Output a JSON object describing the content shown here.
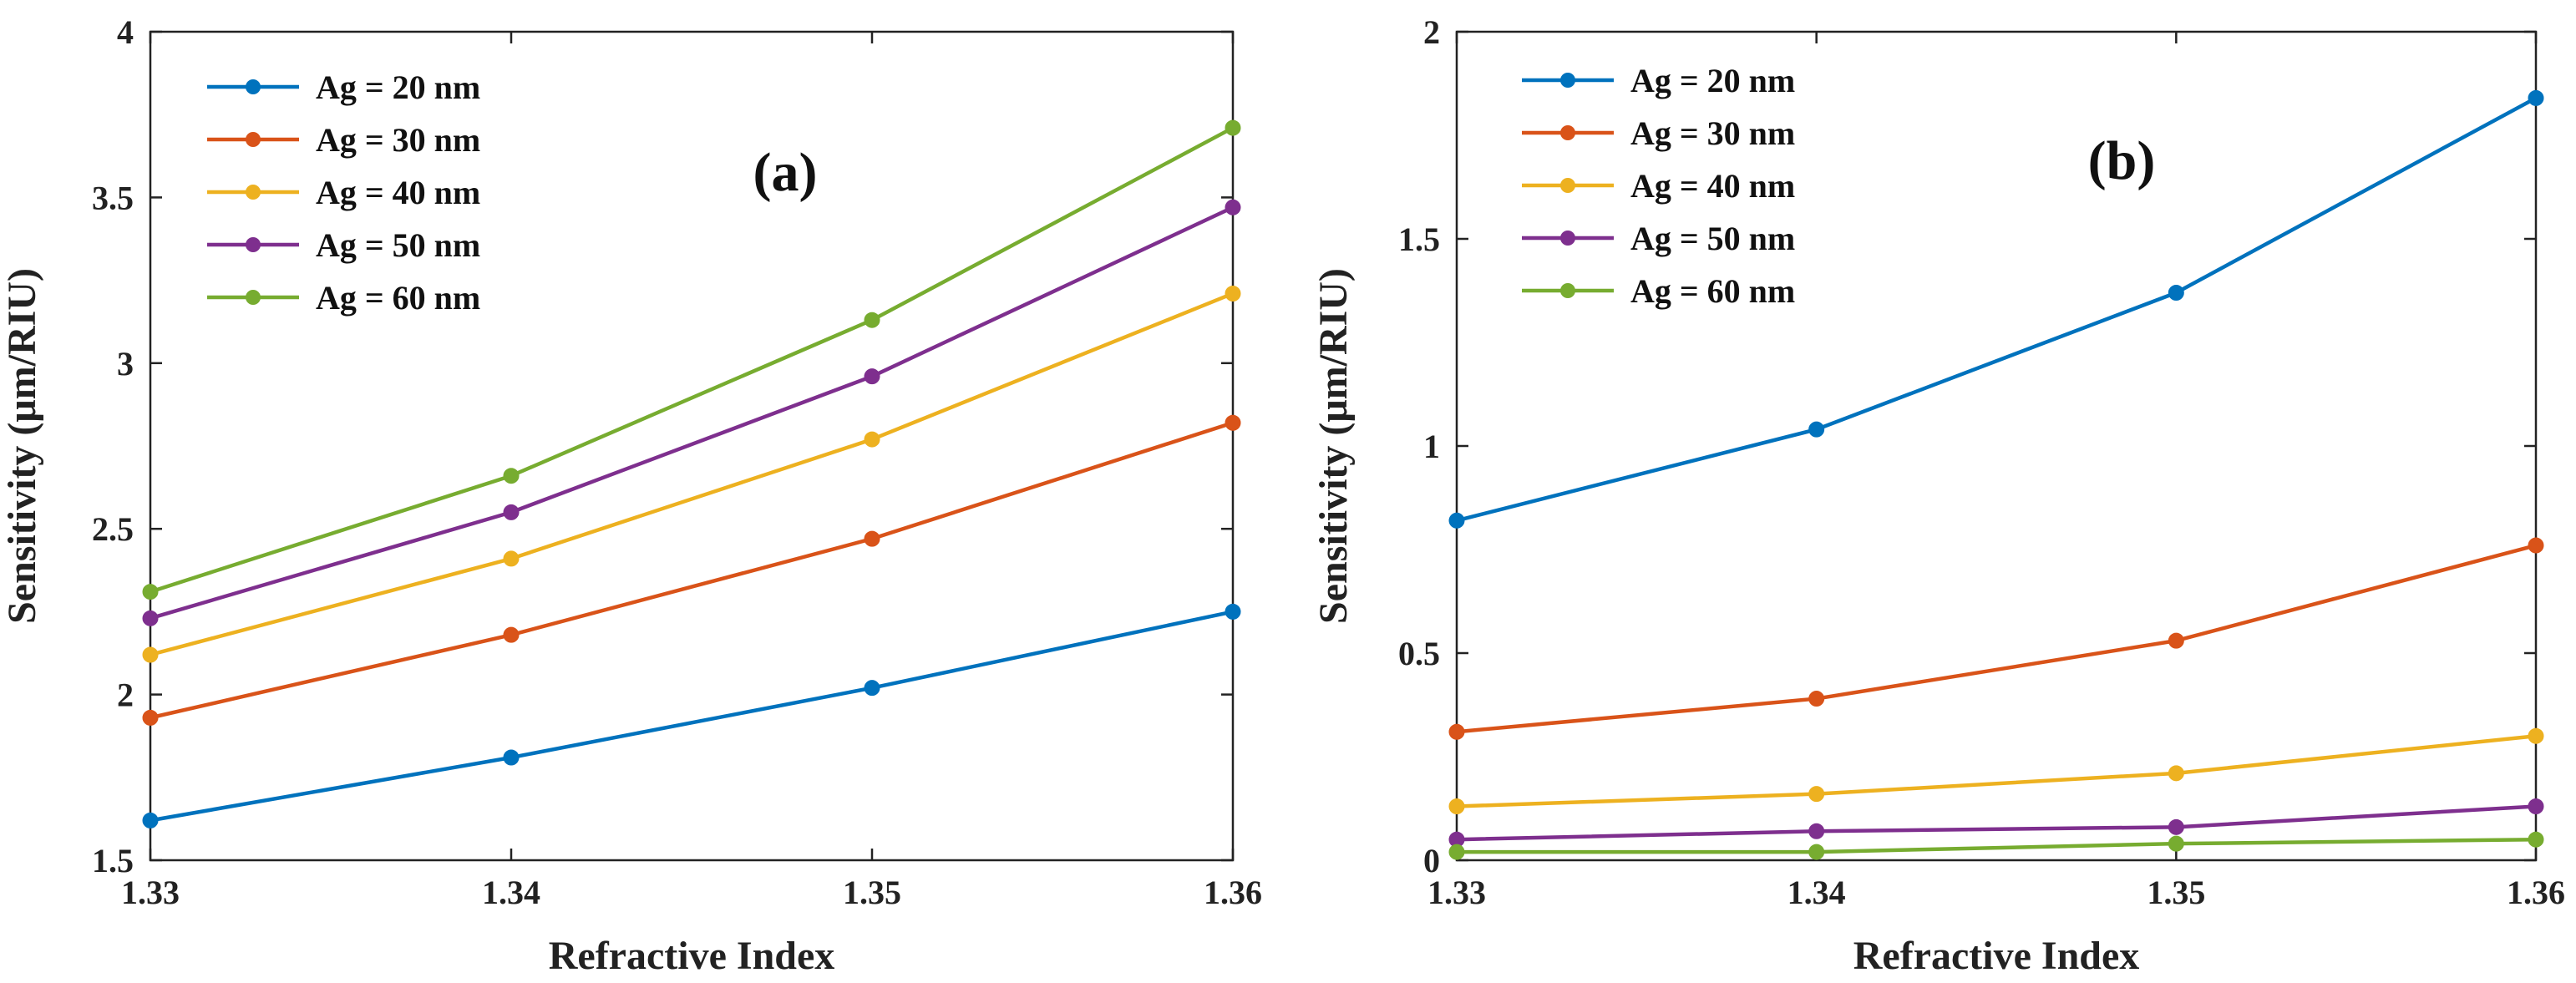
{
  "chart_data": [
    {
      "type": "line",
      "panel_label": "(a)",
      "xlabel": "Refractive Index",
      "ylabel": "Sensitivity (μm/RIU)",
      "x": [
        1.33,
        1.34,
        1.35,
        1.36
      ],
      "x_ticks": [
        "1.33",
        "1.34",
        "1.35",
        "1.36"
      ],
      "xlim": [
        1.33,
        1.36
      ],
      "ylim": [
        1.5,
        4
      ],
      "y_ticks": [
        1.5,
        2,
        2.5,
        3,
        3.5,
        4
      ],
      "y_tick_labels": [
        "1.5",
        "2",
        "2.5",
        "3",
        "3.5",
        "4"
      ],
      "legend_position": "top-left",
      "series": [
        {
          "name": "Ag = 20 nm",
          "color": "#0072BD",
          "values": [
            1.62,
            1.81,
            2.02,
            2.25
          ]
        },
        {
          "name": "Ag = 30 nm",
          "color": "#D95319",
          "values": [
            1.93,
            2.18,
            2.47,
            2.82
          ]
        },
        {
          "name": "Ag = 40 nm",
          "color": "#EDB120",
          "values": [
            2.12,
            2.41,
            2.77,
            3.21
          ]
        },
        {
          "name": "Ag = 50 nm",
          "color": "#7E2F8E",
          "values": [
            2.23,
            2.55,
            2.96,
            3.47
          ]
        },
        {
          "name": "Ag = 60 nm",
          "color": "#77AC30",
          "values": [
            2.31,
            2.66,
            3.13,
            3.71
          ]
        }
      ]
    },
    {
      "type": "line",
      "panel_label": "(b)",
      "xlabel": "Refractive Index",
      "ylabel": "Sensitivity (μm/RIU)",
      "x": [
        1.33,
        1.34,
        1.35,
        1.36
      ],
      "x_ticks": [
        "1.33",
        "1.34",
        "1.35",
        "1.36"
      ],
      "xlim": [
        1.33,
        1.36
      ],
      "ylim": [
        0,
        2
      ],
      "y_ticks": [
        0,
        0.5,
        1,
        1.5,
        2
      ],
      "y_tick_labels": [
        "0",
        "0.5",
        "1",
        "1.5",
        "2"
      ],
      "legend_position": "top-left",
      "series": [
        {
          "name": "Ag = 20 nm",
          "color": "#0072BD",
          "values": [
            0.82,
            1.04,
            1.37,
            1.84
          ]
        },
        {
          "name": "Ag = 30 nm",
          "color": "#D95319",
          "values": [
            0.31,
            0.39,
            0.53,
            0.76
          ]
        },
        {
          "name": "Ag = 40 nm",
          "color": "#EDB120",
          "values": [
            0.13,
            0.16,
            0.21,
            0.3
          ]
        },
        {
          "name": "Ag = 50 nm",
          "color": "#7E2F8E",
          "values": [
            0.05,
            0.07,
            0.08,
            0.13
          ]
        },
        {
          "name": "Ag = 60 nm",
          "color": "#77AC30",
          "values": [
            0.02,
            0.02,
            0.04,
            0.05
          ]
        }
      ]
    }
  ]
}
